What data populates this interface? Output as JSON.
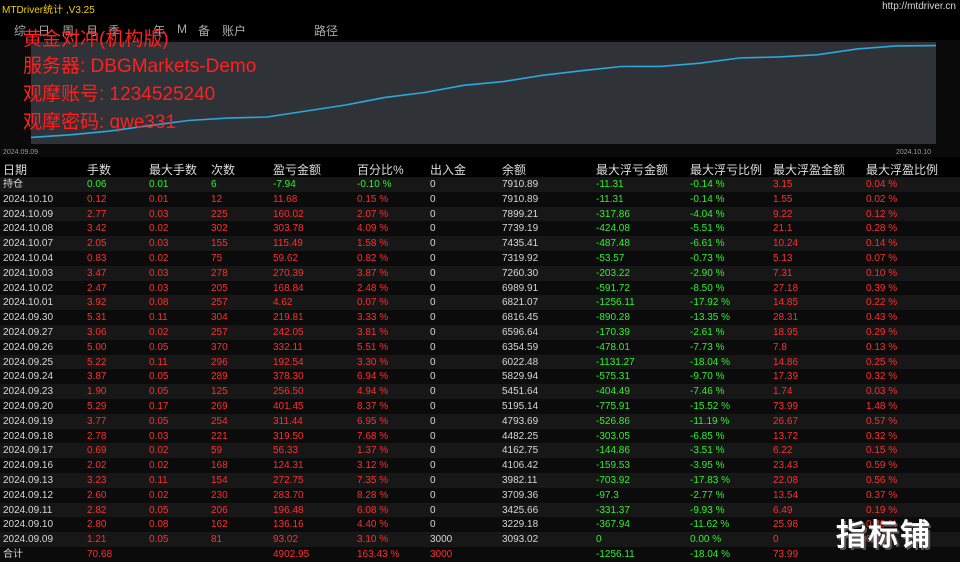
{
  "window": {
    "title": "MTDriver统计 ,V3.25",
    "url": "http://mtdriver.cn"
  },
  "menu": {
    "items": [
      "综",
      "日",
      "周",
      "月",
      "季",
      "年",
      "M",
      "备",
      "账户",
      "路径"
    ]
  },
  "overlay": {
    "line1": "黄金对冲(机构版)",
    "line2": "服务器: DBGMarkets-Demo",
    "line3": "观摩账号: 1234525240",
    "line4": "观摩密码: qwe331"
  },
  "chart_data": {
    "type": "line",
    "x_start": "2024.09.09",
    "x_end": "2024.10.10",
    "x": [
      "2024.09.09",
      "2024.09.10",
      "2024.09.11",
      "2024.09.12",
      "2024.09.13",
      "2024.09.16",
      "2024.09.17",
      "2024.09.18",
      "2024.09.19",
      "2024.09.20",
      "2024.09.23",
      "2024.09.24",
      "2024.09.25",
      "2024.09.26",
      "2024.09.27",
      "2024.09.30",
      "2024.10.01",
      "2024.10.02",
      "2024.10.03",
      "2024.10.04",
      "2024.10.07",
      "2024.10.08",
      "2024.10.09",
      "2024.10.10"
    ],
    "values": [
      3093.02,
      3229.18,
      3425.66,
      3709.36,
      3982.11,
      4106.42,
      4162.75,
      4482.25,
      4793.69,
      5195.14,
      5451.64,
      5829.94,
      6022.48,
      6354.59,
      6596.64,
      6816.45,
      6821.07,
      6989.91,
      7260.3,
      7319.92,
      7435.41,
      7739.19,
      7899.21,
      7910.89
    ],
    "line_color": "#2aa8e0"
  },
  "table": {
    "headers": [
      "日期",
      "手数",
      "最大手数",
      "次数",
      "盈亏金额",
      "百分比%",
      "出入金",
      "余额",
      "最大浮亏金额",
      "最大浮亏比例",
      "最大浮盈金额",
      "最大浮盈比例"
    ],
    "summary_open": [
      "持仓",
      "0.06",
      "0.01",
      "6",
      "-7.94",
      "-0.10 %",
      "0",
      "7910.89",
      "-11.31",
      "-0.14 %",
      "3.15",
      "0.04 %"
    ],
    "rows": [
      [
        "2024.10.10",
        "0.12",
        "0.01",
        "12",
        "11.68",
        "0.15 %",
        "0",
        "7910.89",
        "-11.31",
        "-0.14 %",
        "1.55",
        "0.02 %"
      ],
      [
        "2024.10.09",
        "2.77",
        "0.03",
        "225",
        "160.02",
        "2.07 %",
        "0",
        "7899.21",
        "-317.86",
        "-4.04 %",
        "9.22",
        "0.12 %"
      ],
      [
        "2024.10.08",
        "3.42",
        "0.02",
        "302",
        "303.78",
        "4.09 %",
        "0",
        "7739.19",
        "-424.08",
        "-5.51 %",
        "21.1",
        "0.28 %"
      ],
      [
        "2024.10.07",
        "2.05",
        "0.03",
        "155",
        "115.49",
        "1.58 %",
        "0",
        "7435.41",
        "-487.48",
        "-6.61 %",
        "10.24",
        "0.14 %"
      ],
      [
        "2024.10.04",
        "0.83",
        "0.02",
        "75",
        "59.62",
        "0.82 %",
        "0",
        "7319.92",
        "-53.57",
        "-0.73 %",
        "5.13",
        "0.07 %"
      ],
      [
        "2024.10.03",
        "3.47",
        "0.03",
        "278",
        "270.39",
        "3.87 %",
        "0",
        "7260.30",
        "-203.22",
        "-2.90 %",
        "7.31",
        "0.10 %"
      ],
      [
        "2024.10.02",
        "2.47",
        "0.03",
        "205",
        "168.84",
        "2.48 %",
        "0",
        "6989.91",
        "-591.72",
        "-8.50 %",
        "27.18",
        "0.39 %"
      ],
      [
        "2024.10.01",
        "3.92",
        "0.08",
        "257",
        "4.62",
        "0.07 %",
        "0",
        "6821.07",
        "-1256.11",
        "-17.92 %",
        "14.85",
        "0.22 %"
      ],
      [
        "2024.09.30",
        "5.31",
        "0.11",
        "304",
        "219.81",
        "3.33 %",
        "0",
        "6816.45",
        "-890.28",
        "-13.35 %",
        "28.31",
        "0.43 %"
      ],
      [
        "2024.09.27",
        "3.06",
        "0.02",
        "257",
        "242.05",
        "3.81 %",
        "0",
        "6596.64",
        "-170.39",
        "-2.61 %",
        "18.95",
        "0.29 %"
      ],
      [
        "2024.09.26",
        "5.00",
        "0.05",
        "370",
        "332.11",
        "5.51 %",
        "0",
        "6354.59",
        "-478.01",
        "-7.73 %",
        "7.8",
        "0.13 %"
      ],
      [
        "2024.09.25",
        "5.22",
        "0.11",
        "296",
        "192.54",
        "3.30 %",
        "0",
        "6022.48",
        "-1131.27",
        "-18.04 %",
        "14.86",
        "0.25 %"
      ],
      [
        "2024.09.24",
        "3.87",
        "0.05",
        "289",
        "378.30",
        "6.94 %",
        "0",
        "5829.94",
        "-575.31",
        "-9.70 %",
        "17.39",
        "0.32 %"
      ],
      [
        "2024.09.23",
        "1.90",
        "0.05",
        "125",
        "256.50",
        "4.94 %",
        "0",
        "5451.64",
        "-404.49",
        "-7.46 %",
        "1.74",
        "0.03 %"
      ],
      [
        "2024.09.20",
        "5.29",
        "0.17",
        "269",
        "401.45",
        "8.37 %",
        "0",
        "5195.14",
        "-775.91",
        "-15.52 %",
        "73.99",
        "1.48 %"
      ],
      [
        "2024.09.19",
        "3.77",
        "0.05",
        "254",
        "311.44",
        "6.95 %",
        "0",
        "4793.69",
        "-526.86",
        "-11.19 %",
        "26.67",
        "0.57 %"
      ],
      [
        "2024.09.18",
        "2.78",
        "0.03",
        "221",
        "319.50",
        "7.68 %",
        "0",
        "4482.25",
        "-303.05",
        "-6.85 %",
        "13.72",
        "0.32 %"
      ],
      [
        "2024.09.17",
        "0.69",
        "0.02",
        "59",
        "56.33",
        "1.37 %",
        "0",
        "4162.75",
        "-144.86",
        "-3.51 %",
        "6.22",
        "0.15 %"
      ],
      [
        "2024.09.16",
        "2.02",
        "0.02",
        "168",
        "124.31",
        "3.12 %",
        "0",
        "4106.42",
        "-159.53",
        "-3.95 %",
        "23.43",
        "0.59 %"
      ],
      [
        "2024.09.13",
        "3.23",
        "0.11",
        "154",
        "272.75",
        "7.35 %",
        "0",
        "3982.11",
        "-703.92",
        "-17.83 %",
        "22.08",
        "0.56 %"
      ],
      [
        "2024.09.12",
        "2.60",
        "0.02",
        "230",
        "283.70",
        "8.28 %",
        "0",
        "3709.36",
        "-97.3",
        "-2.77 %",
        "13.54",
        "0.37 %"
      ],
      [
        "2024.09.11",
        "2.82",
        "0.05",
        "206",
        "196.48",
        "6.08 %",
        "0",
        "3425.66",
        "-331.37",
        "-9.93 %",
        "6.49",
        "0.19 %"
      ],
      [
        "2024.09.10",
        "2.80",
        "0.08",
        "162",
        "136.16",
        "4.40 %",
        "0",
        "3229.18",
        "-367.94",
        "-11.62 %",
        "25.98",
        "0.80 %"
      ],
      [
        "2024.09.09",
        "1.21",
        "0.05",
        "81",
        "93.02",
        "3.10 %",
        "3000",
        "3093.02",
        "0",
        "0.00 %",
        "0",
        "0.00 %"
      ]
    ],
    "total": [
      "合计",
      "70.68",
      "",
      "",
      "4902.95",
      "163.43 %",
      "3000",
      "",
      "-1256.11",
      "-18.04 %",
      "73.99",
      ""
    ]
  },
  "watermark": "指标铺",
  "colors": {
    "red": "#ff2e2e",
    "green": "#2ef02e",
    "white": "#d7d7d7",
    "title": "#f0d000"
  }
}
